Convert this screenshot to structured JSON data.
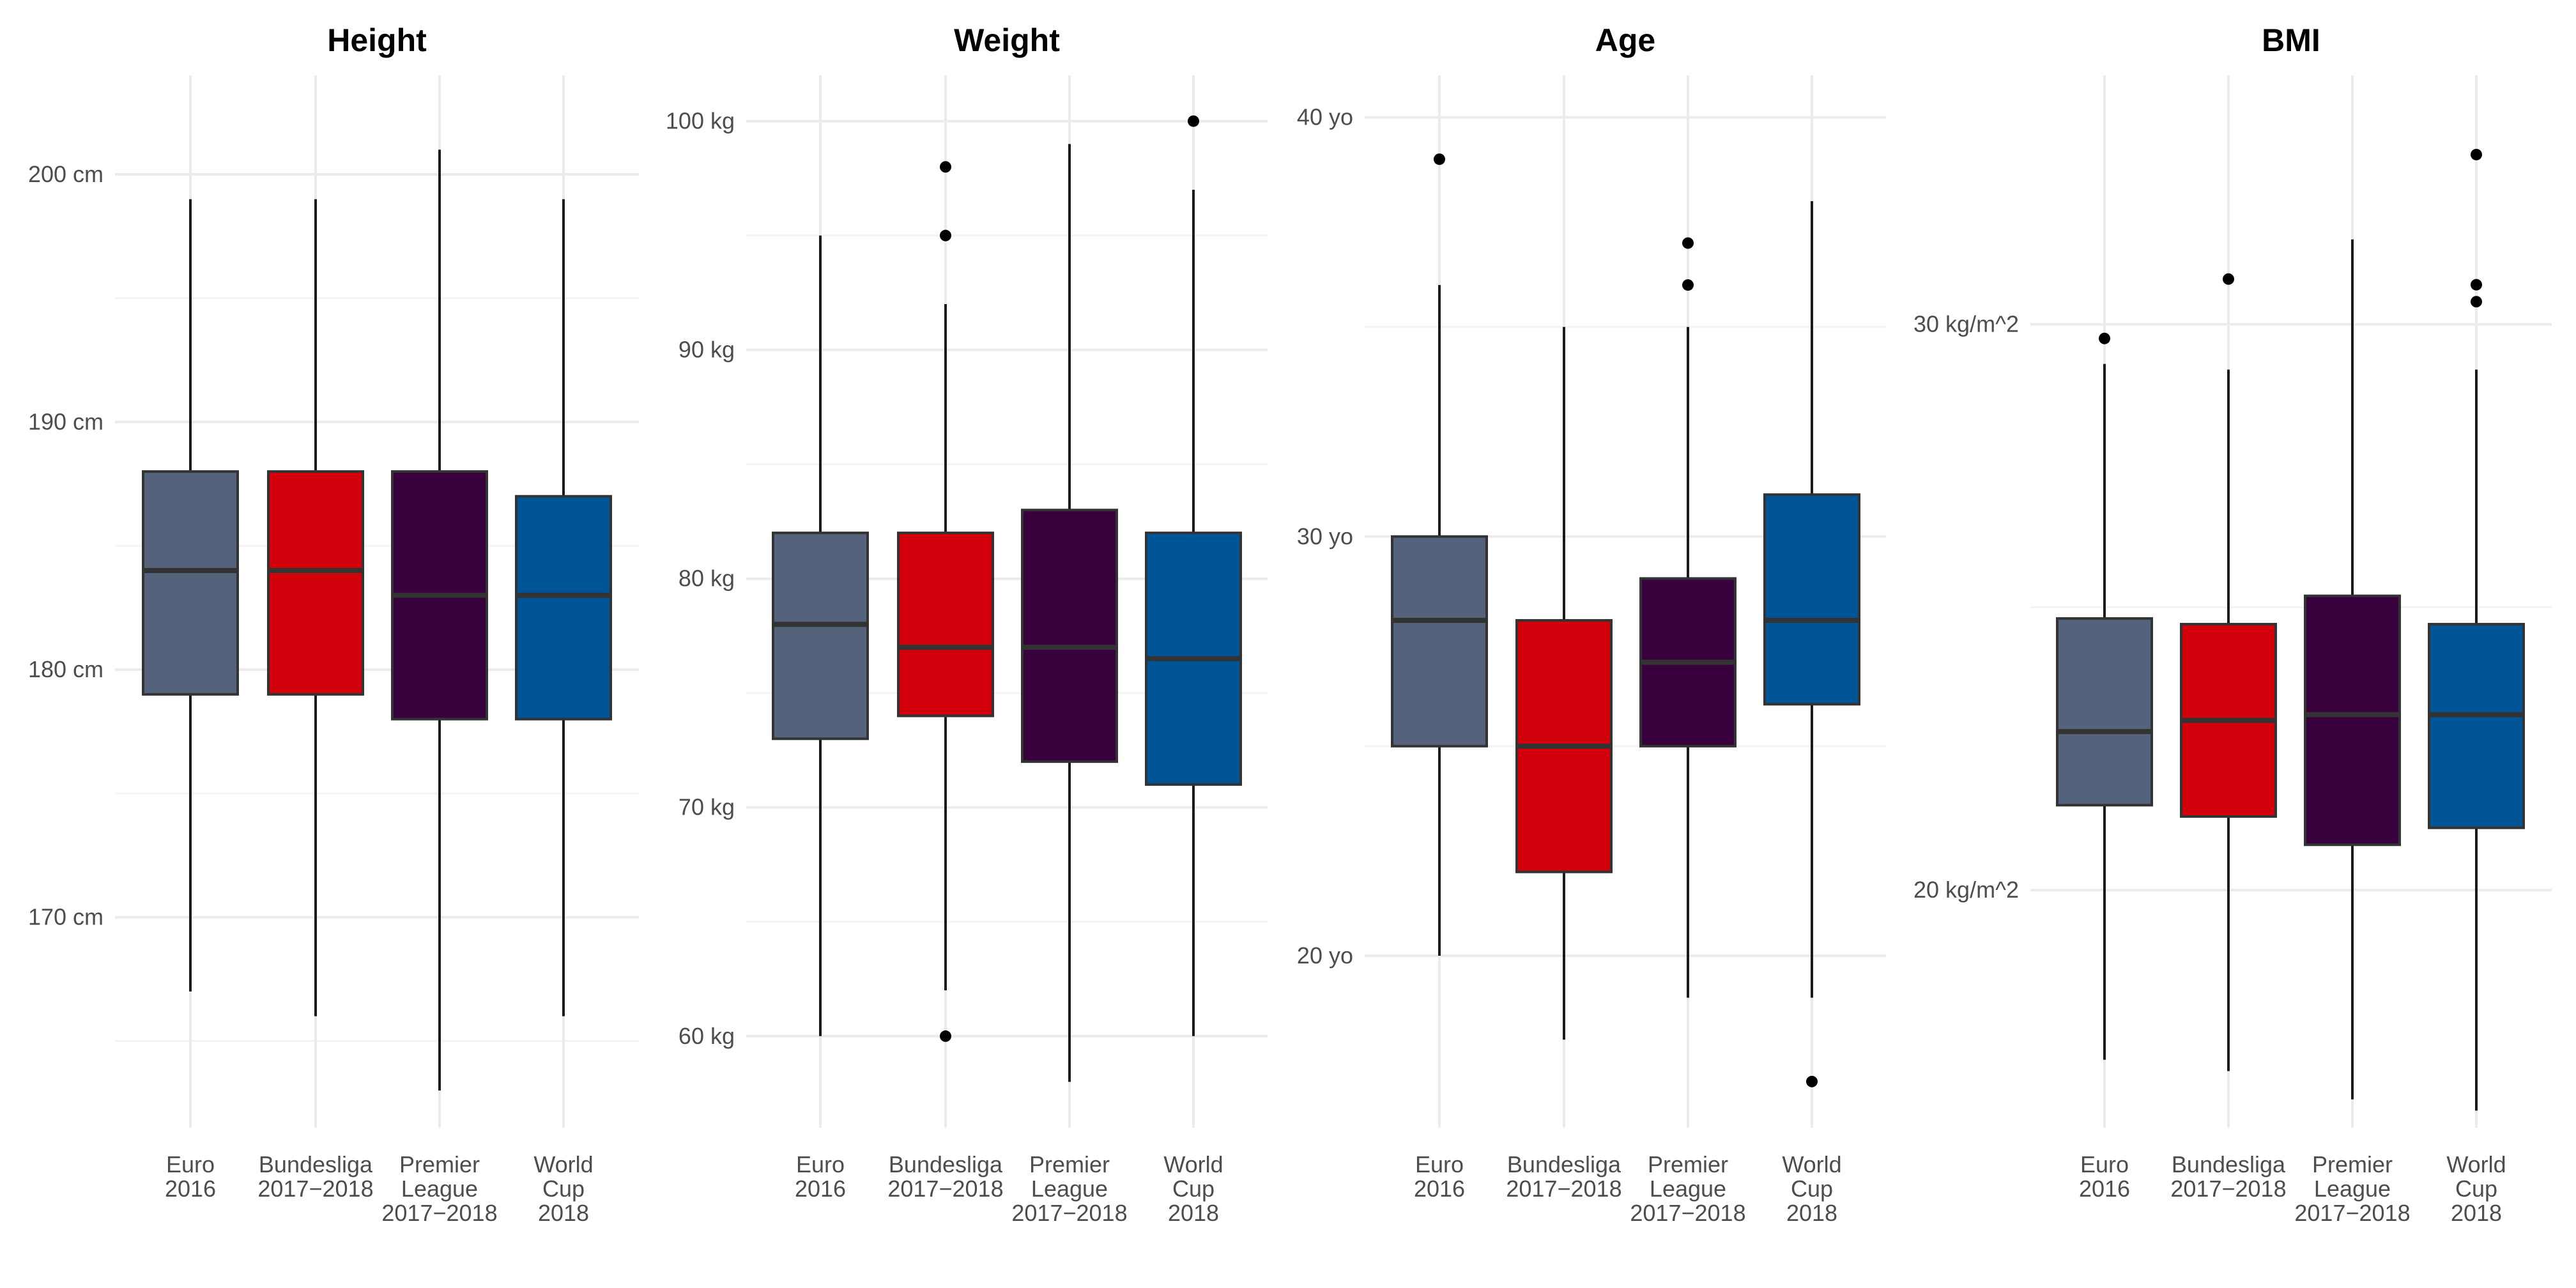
{
  "chart_data": [
    {
      "type": "box",
      "title": "Height",
      "ylim": [
        161.5,
        204
      ],
      "major_ticks": [
        170,
        180,
        190,
        200
      ],
      "minor_ticks": [
        165,
        175,
        185,
        195
      ],
      "tick_labels": [
        "170 cm",
        "180 cm",
        "190 cm",
        "200 cm"
      ],
      "categories": [
        [
          "Euro",
          "2016"
        ],
        [
          "Bundesliga",
          "2017−2018"
        ],
        [
          "Premier",
          "League",
          "2017−2018"
        ],
        [
          "World",
          "Cup",
          "2018"
        ]
      ],
      "series": [
        {
          "whisker_low": 167,
          "q1": 179,
          "median": 184,
          "q3": 188,
          "whisker_high": 199,
          "outliers": []
        },
        {
          "whisker_low": 166,
          "q1": 179,
          "median": 184,
          "q3": 188,
          "whisker_high": 199,
          "outliers": []
        },
        {
          "whisker_low": 163,
          "q1": 178,
          "median": 183,
          "q3": 188,
          "whisker_high": 201,
          "outliers": []
        },
        {
          "whisker_low": 166,
          "q1": 178,
          "median": 183,
          "q3": 187,
          "whisker_high": 199,
          "outliers": []
        }
      ]
    },
    {
      "type": "box",
      "title": "Weight",
      "ylim": [
        56,
        102
      ],
      "major_ticks": [
        60,
        70,
        80,
        90,
        100
      ],
      "minor_ticks": [
        65,
        75,
        85,
        95
      ],
      "tick_labels": [
        "60 kg",
        "70 kg",
        "80 kg",
        "90 kg",
        "100 kg"
      ],
      "categories": [
        [
          "Euro",
          "2016"
        ],
        [
          "Bundesliga",
          "2017−2018"
        ],
        [
          "Premier",
          "League",
          "2017−2018"
        ],
        [
          "World",
          "Cup",
          "2018"
        ]
      ],
      "series": [
        {
          "whisker_low": 60,
          "q1": 73,
          "median": 78,
          "q3": 82,
          "whisker_high": 95,
          "outliers": []
        },
        {
          "whisker_low": 62,
          "q1": 74,
          "median": 77,
          "q3": 82,
          "whisker_high": 92,
          "outliers": [
            60,
            95,
            98
          ]
        },
        {
          "whisker_low": 58,
          "q1": 72,
          "median": 77,
          "q3": 83,
          "whisker_high": 99,
          "outliers": []
        },
        {
          "whisker_low": 60,
          "q1": 71,
          "median": 76.5,
          "q3": 82,
          "whisker_high": 97,
          "outliers": [
            100
          ]
        }
      ]
    },
    {
      "type": "box",
      "title": "Age",
      "ylim": [
        15.9,
        41
      ],
      "major_ticks": [
        20,
        30,
        40
      ],
      "minor_ticks": [
        25,
        35
      ],
      "tick_labels": [
        "20 yo",
        "30 yo",
        "40 yo"
      ],
      "categories": [
        [
          "Euro",
          "2016"
        ],
        [
          "Bundesliga",
          "2017−2018"
        ],
        [
          "Premier",
          "League",
          "2017−2018"
        ],
        [
          "World",
          "Cup",
          "2018"
        ]
      ],
      "series": [
        {
          "whisker_low": 20,
          "q1": 25,
          "median": 28,
          "q3": 30,
          "whisker_high": 36,
          "outliers": [
            39
          ]
        },
        {
          "whisker_low": 18,
          "q1": 22,
          "median": 25,
          "q3": 28,
          "whisker_high": 35,
          "outliers": []
        },
        {
          "whisker_low": 19,
          "q1": 25,
          "median": 27,
          "q3": 29,
          "whisker_high": 35,
          "outliers": [
            36,
            37
          ]
        },
        {
          "whisker_low": 19,
          "q1": 26,
          "median": 28,
          "q3": 31,
          "whisker_high": 38,
          "outliers": [
            17
          ]
        }
      ]
    },
    {
      "type": "box",
      "title": "BMI",
      "ylim": [
        15.8,
        34.4
      ],
      "major_ticks": [
        20,
        30
      ],
      "minor_ticks": [
        25
      ],
      "tick_labels": [
        "20 kg/m^2",
        "30 kg/m^2"
      ],
      "categories": [
        [
          "Euro",
          "2016"
        ],
        [
          "Bundesliga",
          "2017−2018"
        ],
        [
          "Premier",
          "League",
          "2017−2018"
        ],
        [
          "World",
          "Cup",
          "2018"
        ]
      ],
      "series": [
        {
          "whisker_low": 17,
          "q1": 21.5,
          "median": 22.8,
          "q3": 24.8,
          "whisker_high": 29.3,
          "outliers": [
            29.75
          ]
        },
        {
          "whisker_low": 16.8,
          "q1": 21.3,
          "median": 23,
          "q3": 24.7,
          "whisker_high": 29.2,
          "outliers": [
            30.8
          ]
        },
        {
          "whisker_low": 16.3,
          "q1": 20.8,
          "median": 23.1,
          "q3": 25.2,
          "whisker_high": 31.5,
          "outliers": []
        },
        {
          "whisker_low": 16.1,
          "q1": 21.1,
          "median": 23.1,
          "q3": 24.7,
          "whisker_high": 29.2,
          "outliers": [
            30.4,
            30.7,
            33
          ]
        }
      ]
    }
  ],
  "colors": {
    "fills": [
      "#54627b",
      "#d3010c",
      "#38003c",
      "#005597"
    ],
    "box_border": "#333333",
    "whisker": "#1a1a1a",
    "outlier": "#000000",
    "grid_major": "#ebebeb",
    "grid_minor": "#f4f4f4",
    "tick_text": "#4d4d4d",
    "title_text": "#000000"
  }
}
